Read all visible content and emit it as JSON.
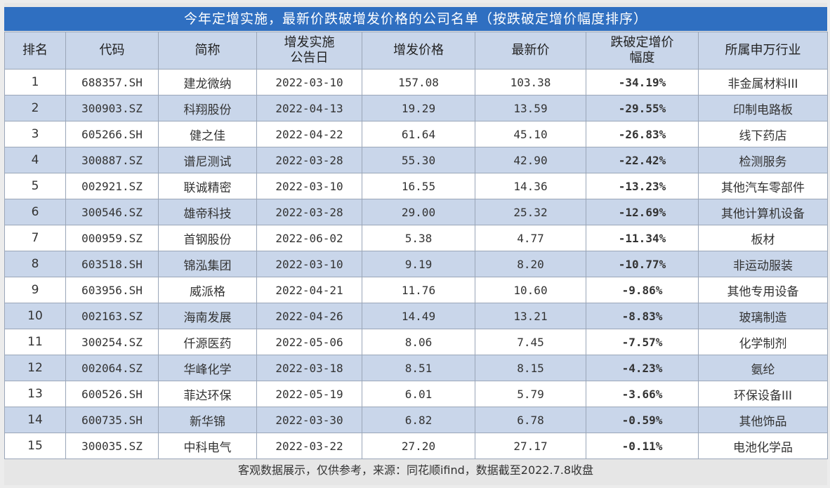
{
  "title": "今年定增实施，最新价跌破增发价格的公司名单（按跌破定增价幅度排序）",
  "headers": [
    "排名",
    "代码",
    "简称",
    "增发实施\n公告日",
    "增发价格",
    "最新价",
    "跌破定增价\n幅度",
    "所属申万行业"
  ],
  "rows": [
    {
      "rank": "1",
      "code": "688357.SH",
      "name": "建龙微纳",
      "date": "2022-03-10",
      "price": "157.08",
      "latest": "103.38",
      "drop": "-34.19%",
      "industry": "非金属材料III"
    },
    {
      "rank": "2",
      "code": "300903.SZ",
      "name": "科翔股份",
      "date": "2022-04-13",
      "price": "19.29",
      "latest": "13.59",
      "drop": "-29.55%",
      "industry": "印制电路板"
    },
    {
      "rank": "3",
      "code": "605266.SH",
      "name": "健之佳",
      "date": "2022-04-22",
      "price": "61.64",
      "latest": "45.10",
      "drop": "-26.83%",
      "industry": "线下药店"
    },
    {
      "rank": "4",
      "code": "300887.SZ",
      "name": "谱尼测试",
      "date": "2022-03-28",
      "price": "55.30",
      "latest": "42.90",
      "drop": "-22.42%",
      "industry": "检测服务"
    },
    {
      "rank": "5",
      "code": "002921.SZ",
      "name": "联诚精密",
      "date": "2022-03-10",
      "price": "16.55",
      "latest": "14.36",
      "drop": "-13.23%",
      "industry": "其他汽车零部件"
    },
    {
      "rank": "6",
      "code": "300546.SZ",
      "name": "雄帝科技",
      "date": "2022-03-28",
      "price": "29.00",
      "latest": "25.32",
      "drop": "-12.69%",
      "industry": "其他计算机设备"
    },
    {
      "rank": "7",
      "code": "000959.SZ",
      "name": "首钢股份",
      "date": "2022-06-02",
      "price": "5.38",
      "latest": "4.77",
      "drop": "-11.34%",
      "industry": "板材"
    },
    {
      "rank": "8",
      "code": "603518.SH",
      "name": "锦泓集团",
      "date": "2022-03-10",
      "price": "9.19",
      "latest": "8.20",
      "drop": "-10.77%",
      "industry": "非运动服装"
    },
    {
      "rank": "9",
      "code": "603956.SH",
      "name": "威派格",
      "date": "2022-04-21",
      "price": "11.76",
      "latest": "10.60",
      "drop": "-9.86%",
      "industry": "其他专用设备"
    },
    {
      "rank": "10",
      "code": "002163.SZ",
      "name": "海南发展",
      "date": "2022-04-26",
      "price": "14.49",
      "latest": "13.21",
      "drop": "-8.83%",
      "industry": "玻璃制造"
    },
    {
      "rank": "11",
      "code": "300254.SZ",
      "name": "仟源医药",
      "date": "2022-05-06",
      "price": "8.06",
      "latest": "7.45",
      "drop": "-7.57%",
      "industry": "化学制剂"
    },
    {
      "rank": "12",
      "code": "002064.SZ",
      "name": "华峰化学",
      "date": "2022-03-18",
      "price": "8.51",
      "latest": "8.15",
      "drop": "-4.23%",
      "industry": "氨纶"
    },
    {
      "rank": "13",
      "code": "600526.SH",
      "name": "菲达环保",
      "date": "2022-05-19",
      "price": "6.01",
      "latest": "5.79",
      "drop": "-3.66%",
      "industry": "环保设备III"
    },
    {
      "rank": "14",
      "code": "600735.SH",
      "name": "新华锦",
      "date": "2022-03-30",
      "price": "6.82",
      "latest": "6.78",
      "drop": "-0.59%",
      "industry": "其他饰品"
    },
    {
      "rank": "15",
      "code": "300035.SZ",
      "name": "中科电气",
      "date": "2022-03-22",
      "price": "27.20",
      "latest": "27.17",
      "drop": "-0.11%",
      "industry": "电池化学品"
    }
  ],
  "footer": "客观数据展示，仅供参考，来源：同花顺ifind，数据截至2022.7.8收盘",
  "colors": {
    "title_bar": "#2f6fc1",
    "header_bg": "#c9d6ea",
    "row_alt_bg": "#c9d6ea",
    "row_bg": "#ffffff"
  }
}
